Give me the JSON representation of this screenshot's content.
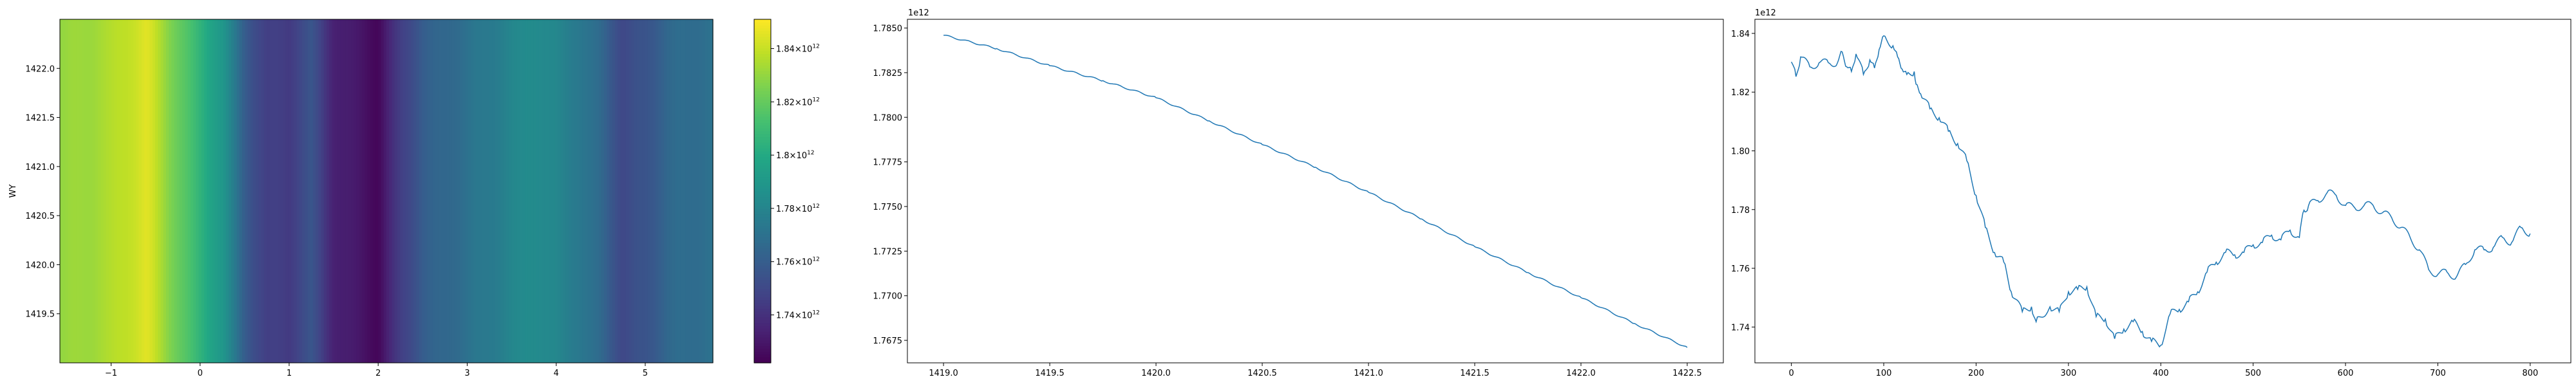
{
  "chart_data": [
    {
      "type": "heatmap",
      "ylabel": "WY",
      "xlabel": "",
      "xlim": [
        -1.575,
        5.76
      ],
      "ylim": [
        1419.0,
        1422.5
      ],
      "xticks": [
        -1,
        0,
        1,
        2,
        3,
        4,
        5
      ],
      "xtick_labels": [
        "−1",
        "0",
        "1",
        "2",
        "3",
        "4",
        "5"
      ],
      "yticks": [
        1419.5,
        1420.0,
        1420.5,
        1421.0,
        1421.5,
        1422.0
      ],
      "ytick_labels": [
        "1419.5",
        "1420.0",
        "1420.5",
        "1421.0",
        "1421.5",
        "1422.0"
      ],
      "colormap": "viridis",
      "colorbar": {
        "vmin": 1722000000000.0,
        "vmax": 1851000000000.0,
        "ticks": [
          1740000000000.0,
          1760000000000.0,
          1780000000000.0,
          1800000000000.0,
          1820000000000.0,
          1840000000000.0
        ],
        "tick_mantissas": [
          "1.74",
          "1.76",
          "1.78",
          "1.8",
          "1.82",
          "1.84"
        ],
        "tick_exponent": "12"
      },
      "column_profile": {
        "x": [
          -1.5,
          -1.0,
          -0.6,
          -0.3,
          0,
          0.25,
          0.5,
          0.75,
          1.0,
          1.25,
          1.5,
          1.75,
          2.0,
          2.25,
          2.5,
          2.75,
          3.0,
          3.25,
          3.5,
          3.75,
          4.0,
          4.25,
          4.5,
          4.75,
          5.0,
          5.25,
          5.5,
          5.75
        ],
        "values": [
          1830000000000.0,
          1835000000000.0,
          1845000000000.0,
          1825000000000.0,
          1805000000000.0,
          1790000000000.0,
          1760000000000.0,
          1745000000000.0,
          1745000000000.0,
          1755000000000.0,
          1735000000000.0,
          1730000000000.0,
          1725000000000.0,
          1745000000000.0,
          1760000000000.0,
          1765000000000.0,
          1770000000000.0,
          1775000000000.0,
          1780000000000.0,
          1785000000000.0,
          1780000000000.0,
          1775000000000.0,
          1765000000000.0,
          1750000000000.0,
          1755000000000.0,
          1765000000000.0,
          1768000000000.0,
          1770000000000.0
        ]
      }
    },
    {
      "type": "line",
      "offset_label": "1e12",
      "xlim": [
        1418.83,
        1422.67
      ],
      "ylim": [
        1766240000000.0,
        1785490000000.0
      ],
      "xticks": [
        1419.0,
        1419.5,
        1420.0,
        1420.5,
        1421.0,
        1421.5,
        1422.0,
        1422.5
      ],
      "xtick_labels": [
        "1419.0",
        "1419.5",
        "1420.0",
        "1420.5",
        "1421.0",
        "1421.5",
        "1422.0",
        "1422.5"
      ],
      "yticks": [
        1767500000000.0,
        1770000000000.0,
        1772500000000.0,
        1775000000000.0,
        1777500000000.0,
        1780000000000.0,
        1782500000000.0,
        1785000000000.0
      ],
      "ytick_labels": [
        "1.7675",
        "1.7700",
        "1.7725",
        "1.7750",
        "1.7775",
        "1.7800",
        "1.7825",
        "1.7850"
      ],
      "color": "#1f77b4",
      "x": [
        1419.0,
        1419.25,
        1419.5,
        1419.75,
        1420.0,
        1420.25,
        1420.5,
        1420.75,
        1421.0,
        1421.25,
        1421.5,
        1421.75,
        1422.0,
        1422.25,
        1422.5
      ],
      "y": [
        1784600000000.0,
        1783850000000.0,
        1782890000000.0,
        1782050000000.0,
        1781100000000.0,
        1779800000000.0,
        1778470000000.0,
        1777200000000.0,
        1775800000000.0,
        1774300000000.0,
        1772750000000.0,
        1771300000000.0,
        1769900000000.0,
        1768450000000.0,
        1767100000000.0
      ]
    },
    {
      "type": "line",
      "offset_label": "1e12",
      "xlim": [
        -39.5,
        844
      ],
      "ylim": [
        1727800000000.0,
        1844800000000.0
      ],
      "xticks": [
        0,
        100,
        200,
        300,
        400,
        500,
        600,
        700,
        800
      ],
      "xtick_labels": [
        "0",
        "100",
        "200",
        "300",
        "400",
        "500",
        "600",
        "700",
        "800"
      ],
      "yticks": [
        1740000000000.0,
        1760000000000.0,
        1780000000000.0,
        1800000000000.0,
        1820000000000.0,
        1840000000000.0
      ],
      "ytick_labels": [
        "1.74",
        "1.76",
        "1.78",
        "1.80",
        "1.82",
        "1.84"
      ],
      "color": "#1f77b4",
      "x": [
        0,
        5,
        10,
        20,
        30,
        40,
        50,
        55,
        60,
        65,
        70,
        78,
        85,
        90,
        95,
        100,
        110,
        115,
        120,
        125,
        133,
        135,
        140,
        150,
        160,
        170,
        180,
        190,
        200,
        210,
        220,
        230,
        238,
        250,
        260,
        265,
        280,
        290,
        300,
        310,
        320,
        330,
        340,
        350,
        360,
        370,
        380,
        390,
        400,
        410,
        420,
        430,
        440,
        450,
        460,
        470,
        480,
        490,
        500,
        510,
        520,
        530,
        540,
        550,
        555,
        560,
        570,
        580,
        590,
        600,
        610,
        620,
        630,
        640,
        650,
        660,
        670,
        680,
        690,
        700,
        710,
        720,
        730,
        740,
        750,
        760,
        770,
        780,
        790,
        800
      ],
      "y": [
        1.8303,
        1.8253,
        1.832,
        1.8286,
        1.83,
        1.83,
        1.83,
        1.8337,
        1.8286,
        1.827,
        1.833,
        1.826,
        1.831,
        1.8282,
        1.8345,
        1.8392,
        1.8358,
        1.832,
        1.8278,
        1.826,
        1.827,
        1.8227,
        1.8194,
        1.8143,
        1.8113,
        1.8067,
        1.8025,
        1.7966,
        1.7848,
        1.7739,
        1.7654,
        1.7621,
        1.752,
        1.7452,
        1.7469,
        1.7418,
        1.7469,
        1.7452,
        1.752,
        1.7528,
        1.7537,
        1.7435,
        1.7427,
        1.736,
        1.7393,
        1.7418,
        1.7385,
        1.7351,
        1.7338,
        1.7444,
        1.746,
        1.7486,
        1.752,
        1.7587,
        1.7621,
        1.7654,
        1.7646,
        1.7654,
        1.768,
        1.7688,
        1.7713,
        1.7697,
        1.773,
        1.7705,
        1.7798,
        1.7814,
        1.7831,
        1.7857,
        1.7848,
        1.7814,
        1.7806,
        1.7814,
        1.7814,
        1.7789,
        1.7772,
        1.7739,
        1.7705,
        1.7663,
        1.7596,
        1.7579,
        1.7587,
        1.757,
        1.7613,
        1.7663,
        1.7663,
        1.7671,
        1.7705,
        1.7688,
        1.7739,
        1.7718
      ],
      "y_scale_factor": 1000000000000.0
    }
  ]
}
